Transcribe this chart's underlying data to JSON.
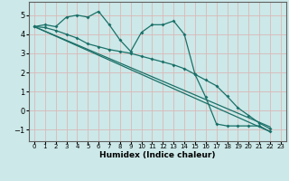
{
  "xlabel": "Humidex (Indice chaleur)",
  "background_color": "#cce8e8",
  "grid_color": "#dbb8b8",
  "line_color": "#1a7068",
  "xlim": [
    -0.5,
    23.5
  ],
  "ylim": [
    -1.6,
    5.7
  ],
  "yticks": [
    -1,
    0,
    1,
    2,
    3,
    4,
    5
  ],
  "xticks": [
    0,
    1,
    2,
    3,
    4,
    5,
    6,
    7,
    8,
    9,
    10,
    11,
    12,
    13,
    14,
    15,
    16,
    17,
    18,
    19,
    20,
    21,
    22,
    23
  ],
  "series1_x": [
    0,
    1,
    2,
    3,
    4,
    5,
    6,
    7,
    8,
    9,
    10,
    11,
    12,
    13,
    14,
    15,
    16,
    17,
    18,
    19,
    20,
    21,
    22
  ],
  "series1_y": [
    4.4,
    4.5,
    4.4,
    4.9,
    5.0,
    4.9,
    5.2,
    4.5,
    3.7,
    3.1,
    4.1,
    4.5,
    4.5,
    4.7,
    4.0,
    1.9,
    0.7,
    -0.7,
    -0.8,
    -0.8,
    -0.8,
    -0.8,
    -1.1
  ],
  "series2_x": [
    0,
    1,
    2,
    3,
    4,
    5,
    6,
    7,
    8,
    9,
    10,
    11,
    12,
    13,
    14,
    15,
    16,
    17,
    18,
    19,
    20,
    21,
    22
  ],
  "series2_y": [
    4.4,
    4.35,
    4.2,
    4.0,
    3.8,
    3.5,
    3.35,
    3.2,
    3.1,
    3.0,
    2.85,
    2.7,
    2.55,
    2.4,
    2.2,
    1.9,
    1.6,
    1.3,
    0.75,
    0.15,
    -0.25,
    -0.65,
    -0.95
  ],
  "line3_x": [
    0,
    22
  ],
  "line3_y": [
    4.4,
    -0.85
  ],
  "line4_x": [
    0,
    22
  ],
  "line4_y": [
    4.4,
    -1.1
  ],
  "xlabel_fontsize": 6.5,
  "xlabel_fontweight": "bold"
}
